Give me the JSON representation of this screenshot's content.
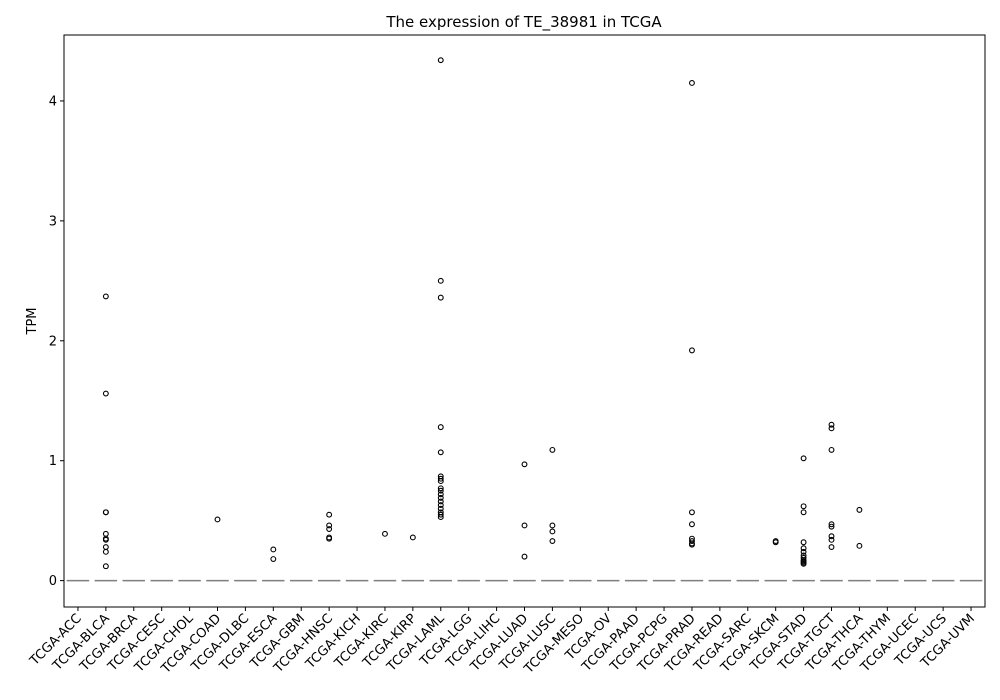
{
  "chart_data": {
    "type": "box",
    "title": "The expression of TE_38981 in TCGA",
    "xlabel": "",
    "ylabel": "TPM",
    "ylim": [
      -0.22,
      4.55
    ],
    "yticks": [
      0,
      1,
      2,
      3,
      4
    ],
    "grid": false,
    "legend": "none",
    "box_color": "#4c72b0",
    "median_color": "#808080",
    "flier_color": "#000000",
    "categories": [
      "TCGA-ACC",
      "TCGA-BLCA",
      "TCGA-BRCA",
      "TCGA-CESC",
      "TCGA-CHOL",
      "TCGA-COAD",
      "TCGA-DLBC",
      "TCGA-ESCA",
      "TCGA-GBM",
      "TCGA-HNSC",
      "TCGA-KICH",
      "TCGA-KIRC",
      "TCGA-KIRP",
      "TCGA-LAML",
      "TCGA-LGG",
      "TCGA-LIHC",
      "TCGA-LUAD",
      "TCGA-LUSC",
      "TCGA-MESO",
      "TCGA-OV",
      "TCGA-PAAD",
      "TCGA-PCPG",
      "TCGA-PRAD",
      "TCGA-READ",
      "TCGA-SARC",
      "TCGA-SKCM",
      "TCGA-STAD",
      "TCGA-TGCT",
      "TCGA-THCA",
      "TCGA-THYM",
      "TCGA-UCEC",
      "TCGA-UCS",
      "TCGA-UVM"
    ],
    "medians": [
      0,
      0,
      0,
      0,
      0,
      0,
      0,
      0,
      0,
      0,
      0,
      0,
      0,
      0,
      0,
      0,
      0,
      0,
      0,
      0,
      0,
      0,
      0,
      0,
      0,
      0,
      0,
      0,
      0,
      0,
      0,
      0,
      0
    ],
    "outliers": [
      [],
      [
        2.37,
        1.56,
        0.57,
        0.57,
        0.39,
        0.35,
        0.34,
        0.28,
        0.24,
        0.12
      ],
      [],
      [],
      [],
      [
        0.51
      ],
      [],
      [
        0.26,
        0.18
      ],
      [],
      [
        0.55,
        0.46,
        0.43,
        0.36,
        0.35
      ],
      [],
      [
        0.39
      ],
      [
        0.36
      ],
      [
        4.34,
        2.5,
        2.36,
        1.28,
        1.07,
        0.87,
        0.85,
        0.83,
        0.77,
        0.75,
        0.72,
        0.69,
        0.66,
        0.63,
        0.6,
        0.57,
        0.55,
        0.53
      ],
      [],
      [],
      [
        0.97,
        0.46,
        0.2
      ],
      [
        1.09,
        0.46,
        0.41,
        0.33
      ],
      [],
      [],
      [],
      [],
      [
        4.15,
        1.92,
        0.57,
        0.47,
        0.35,
        0.33,
        0.31,
        0.3
      ],
      [],
      [],
      [
        0.33,
        0.32
      ],
      [
        1.02,
        0.62,
        0.57,
        0.32,
        0.27,
        0.24,
        0.21,
        0.19,
        0.17,
        0.16,
        0.15,
        0.14
      ],
      [
        1.3,
        1.27,
        1.09,
        0.47,
        0.45,
        0.37,
        0.34,
        0.28
      ],
      [
        0.59,
        0.29
      ],
      [],
      [],
      [],
      []
    ]
  }
}
